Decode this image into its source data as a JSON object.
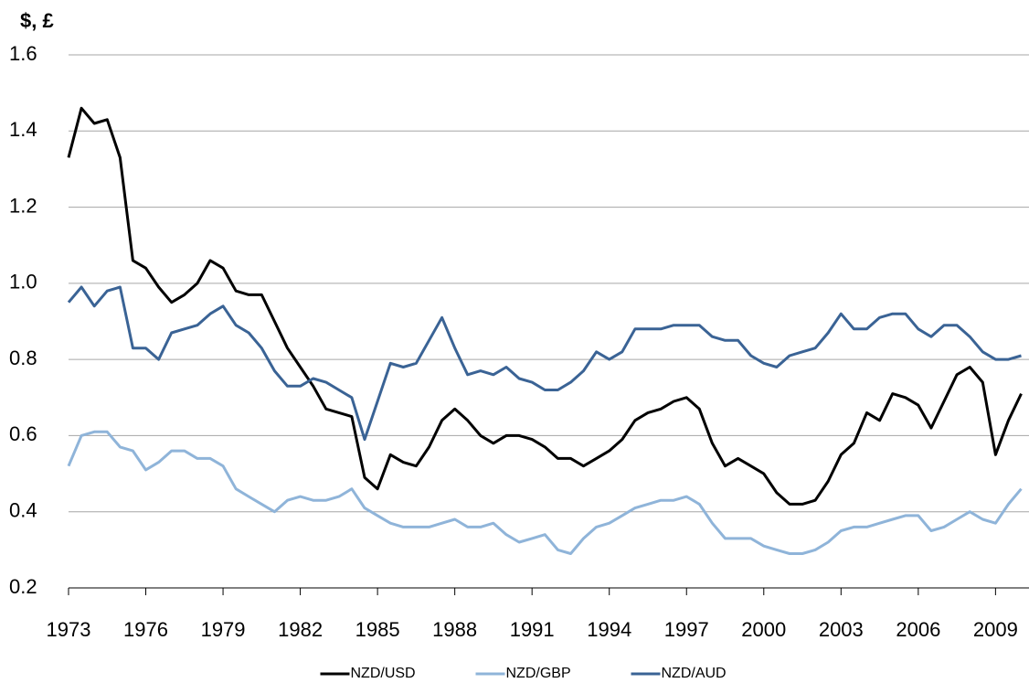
{
  "chart_data": {
    "type": "line",
    "y_label": "$, £",
    "x": [
      1973,
      1973.5,
      1974,
      1974.5,
      1975,
      1975.5,
      1976,
      1976.5,
      1977,
      1977.5,
      1978,
      1978.5,
      1979,
      1979.5,
      1980,
      1980.5,
      1981,
      1981.5,
      1982,
      1982.5,
      1983,
      1983.5,
      1984,
      1984.5,
      1985,
      1985.5,
      1986,
      1986.5,
      1987,
      1987.5,
      1988,
      1988.5,
      1989,
      1989.5,
      1990,
      1990.5,
      1991,
      1991.5,
      1992,
      1992.5,
      1993,
      1993.5,
      1994,
      1994.5,
      1995,
      1995.5,
      1996,
      1996.5,
      1997,
      1997.5,
      1998,
      1998.5,
      1999,
      1999.5,
      2000,
      2000.5,
      2001,
      2001.5,
      2002,
      2002.5,
      2003,
      2003.5,
      2004,
      2004.5,
      2005,
      2005.5,
      2006,
      2006.5,
      2007,
      2007.5,
      2008,
      2008.5,
      2009,
      2009.5,
      2010
    ],
    "series": [
      {
        "name": "NZD/USD",
        "color": "#000000",
        "values": [
          1.33,
          1.46,
          1.42,
          1.43,
          1.33,
          1.06,
          1.04,
          0.99,
          0.95,
          0.97,
          1.0,
          1.06,
          1.04,
          0.98,
          0.97,
          0.97,
          0.9,
          0.83,
          0.78,
          0.73,
          0.67,
          0.66,
          0.65,
          0.49,
          0.46,
          0.55,
          0.53,
          0.52,
          0.57,
          0.64,
          0.67,
          0.64,
          0.6,
          0.58,
          0.6,
          0.6,
          0.59,
          0.57,
          0.54,
          0.54,
          0.52,
          0.54,
          0.56,
          0.59,
          0.64,
          0.66,
          0.67,
          0.69,
          0.7,
          0.67,
          0.58,
          0.52,
          0.54,
          0.52,
          0.5,
          0.45,
          0.42,
          0.42,
          0.43,
          0.48,
          0.55,
          0.58,
          0.66,
          0.64,
          0.71,
          0.7,
          0.68,
          0.62,
          0.69,
          0.76,
          0.78,
          0.74,
          0.55,
          0.64,
          0.71
        ]
      },
      {
        "name": "NZD/GBP",
        "color": "#8fb4d9",
        "values": [
          0.52,
          0.6,
          0.61,
          0.61,
          0.57,
          0.56,
          0.51,
          0.53,
          0.56,
          0.56,
          0.54,
          0.54,
          0.52,
          0.46,
          0.44,
          0.42,
          0.4,
          0.43,
          0.44,
          0.43,
          0.43,
          0.44,
          0.46,
          0.41,
          0.39,
          0.37,
          0.36,
          0.36,
          0.36,
          0.37,
          0.38,
          0.36,
          0.36,
          0.37,
          0.34,
          0.32,
          0.33,
          0.34,
          0.3,
          0.29,
          0.33,
          0.36,
          0.37,
          0.39,
          0.41,
          0.42,
          0.43,
          0.43,
          0.44,
          0.42,
          0.37,
          0.33,
          0.33,
          0.33,
          0.31,
          0.3,
          0.29,
          0.29,
          0.3,
          0.32,
          0.35,
          0.36,
          0.36,
          0.37,
          0.38,
          0.39,
          0.39,
          0.35,
          0.36,
          0.38,
          0.4,
          0.38,
          0.37,
          0.42,
          0.46
        ]
      },
      {
        "name": "NZD/AUD",
        "color": "#3a6395",
        "values": [
          0.95,
          0.99,
          0.94,
          0.98,
          0.99,
          0.83,
          0.83,
          0.8,
          0.87,
          0.88,
          0.89,
          0.92,
          0.94,
          0.89,
          0.87,
          0.83,
          0.77,
          0.73,
          0.73,
          0.75,
          0.74,
          0.72,
          0.7,
          0.59,
          0.69,
          0.79,
          0.78,
          0.79,
          0.85,
          0.91,
          0.83,
          0.76,
          0.77,
          0.76,
          0.78,
          0.75,
          0.74,
          0.72,
          0.72,
          0.74,
          0.77,
          0.82,
          0.8,
          0.82,
          0.88,
          0.88,
          0.88,
          0.89,
          0.89,
          0.89,
          0.86,
          0.85,
          0.85,
          0.81,
          0.79,
          0.78,
          0.81,
          0.82,
          0.83,
          0.87,
          0.92,
          0.88,
          0.88,
          0.91,
          0.92,
          0.92,
          0.88,
          0.86,
          0.89,
          0.89,
          0.86,
          0.82,
          0.8,
          0.8,
          0.81
        ]
      }
    ],
    "xlim": [
      1973,
      2010.3
    ],
    "xticks": [
      1973,
      1976,
      1979,
      1982,
      1985,
      1988,
      1991,
      1994,
      1997,
      2000,
      2003,
      2006,
      2009
    ],
    "ylim": [
      0.2,
      1.6
    ],
    "yticks": [
      1.6,
      1.4,
      1.2,
      {
        "value": 1,
        "label": "1.0"
      },
      0.8,
      0.6,
      0.4,
      0.2
    ],
    "grid": true,
    "legend": "bottom"
  }
}
